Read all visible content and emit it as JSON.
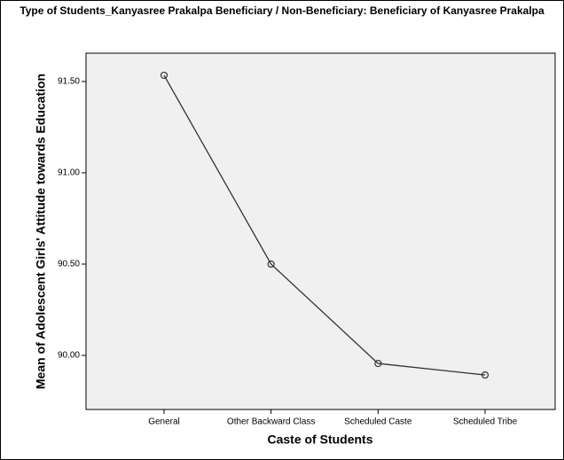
{
  "chart_data": {
    "type": "line",
    "title": "Type of Students_Kanyasree Prakalpa Beneficiary / Non-Beneficiary: Beneficiary of Kanyasree Prakalpa",
    "x_label": "Caste of Students",
    "y_label": "Mean of Adolescent Girls' Attitude towards Education",
    "categories": [
      "General",
      "Other Backward Class",
      "Scheduled Caste",
      "Scheduled Tribe"
    ],
    "series": [
      {
        "name": "Mean",
        "color": "#333333",
        "values": [
          91.534,
          90.5,
          89.956,
          89.893
        ]
      }
    ],
    "ylim": [
      89.704,
      91.655
    ],
    "yticks": [
      {
        "value": 90.0,
        "label": "90.00"
      },
      {
        "value": 90.5,
        "label": "90.50"
      },
      {
        "value": 91.0,
        "label": "91.00"
      },
      {
        "value": 91.5,
        "label": "91.50"
      }
    ],
    "grid": false
  }
}
